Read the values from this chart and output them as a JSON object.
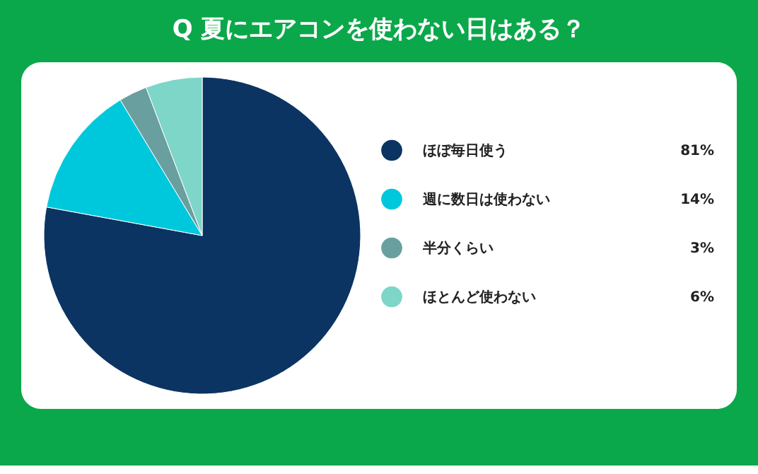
{
  "chart_data": {
    "type": "pie",
    "title": "Q 夏にエアコンを使わない日はある？",
    "categories": [
      "ほぼ毎日使う",
      "週に数日は使わない",
      "半分くらい",
      "ほとんど使わない"
    ],
    "values": [
      81,
      14,
      3,
      6
    ],
    "colors": [
      "#0b3462",
      "#00c8dc",
      "#6a9fa0",
      "#7dd6c8"
    ],
    "value_labels": [
      "81%",
      "14%",
      "3%",
      "6%"
    ],
    "legend": "right"
  }
}
